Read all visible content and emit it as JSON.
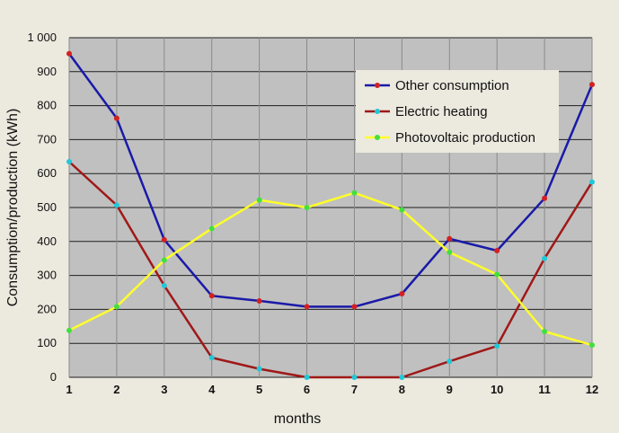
{
  "chart_data": {
    "type": "line",
    "title": "",
    "xlabel": "months",
    "ylabel": "Consumption/production (kWh)",
    "x": [
      1,
      2,
      3,
      4,
      5,
      6,
      7,
      8,
      9,
      10,
      11,
      12
    ],
    "x_tick_labels": [
      "1",
      "2",
      "3",
      "4",
      "5",
      "6",
      "7",
      "8",
      "9",
      "10",
      "11",
      "12"
    ],
    "ylim": [
      0,
      1000
    ],
    "y_tick_labels": [
      "0",
      "100",
      "200",
      "300",
      "400",
      "500",
      "600",
      "700",
      "800",
      "900",
      "1 000"
    ],
    "y_ticks": [
      0,
      100,
      200,
      300,
      400,
      500,
      600,
      700,
      800,
      900,
      1000
    ],
    "grid": true,
    "legend_position": "top-right",
    "plot_background": "#c0c0c0",
    "series": [
      {
        "name": "Other consumption",
        "line_color": "#1a1aa8",
        "marker_color": "#d42020",
        "values": [
          953,
          763,
          405,
          240,
          225,
          208,
          208,
          246,
          408,
          373,
          527,
          862
        ]
      },
      {
        "name": "Electric heating",
        "line_color": "#a01818",
        "marker_color": "#20c8d8",
        "values": [
          635,
          507,
          270,
          58,
          25,
          0,
          0,
          0,
          47,
          92,
          350,
          575
        ]
      },
      {
        "name": "Photovoltaic production",
        "line_color": "#ffff2a",
        "marker_color": "#40e040",
        "values": [
          138,
          208,
          345,
          438,
          522,
          500,
          543,
          493,
          368,
          303,
          135,
          95
        ]
      }
    ]
  }
}
